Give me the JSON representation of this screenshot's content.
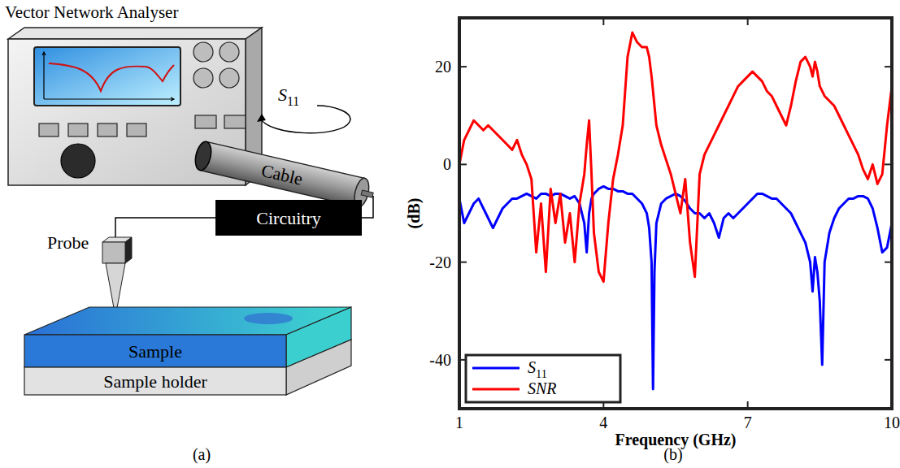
{
  "diagram": {
    "title": "Vector Network Analyser",
    "s_parameter": "S11",
    "nodes": [
      {
        "label": "Cable"
      },
      {
        "label": "Circuitry"
      },
      {
        "label": "Probe"
      },
      {
        "label": "Sample"
      },
      {
        "label": "Sample holder"
      }
    ],
    "caption": "(a)"
  },
  "chart_data": {
    "type": "line",
    "caption": "(b)",
    "x_label": "Frequency (GHz)",
    "y_label": "(dB)",
    "x": [
      1,
      1.1,
      1.2,
      1.3,
      1.4,
      1.5,
      1.6,
      1.7,
      1.8,
      1.9,
      2,
      2.1,
      2.2,
      2.3,
      2.4,
      2.5,
      2.6,
      2.7,
      2.8,
      2.9,
      3,
      3.1,
      3.2,
      3.3,
      3.4,
      3.5,
      3.6,
      3.65,
      3.7,
      3.75,
      3.8,
      3.9,
      4,
      4.1,
      4.2,
      4.3,
      4.4,
      4.5,
      4.6,
      4.7,
      4.8,
      4.9,
      4.95,
      5,
      5.03,
      5.06,
      5.1,
      5.2,
      5.3,
      5.4,
      5.5,
      5.6,
      5.7,
      5.8,
      5.9,
      6,
      6.1,
      6.2,
      6.3,
      6.4,
      6.5,
      6.6,
      6.7,
      6.8,
      6.9,
      7,
      7.1,
      7.2,
      7.3,
      7.4,
      7.5,
      7.6,
      7.7,
      7.8,
      7.9,
      8,
      8.1,
      8.2,
      8.3,
      8.35,
      8.4,
      8.45,
      8.5,
      8.55,
      8.6,
      8.7,
      8.8,
      8.9,
      9,
      9.1,
      9.2,
      9.3,
      9.4,
      9.5,
      9.6,
      9.7,
      9.8,
      9.9,
      10
    ],
    "series": [
      {
        "name": "S11",
        "color": "#0000ff",
        "values": [
          -7,
          -12,
          -10,
          -8,
          -7,
          -9,
          -11,
          -13,
          -11,
          -9,
          -8,
          -7,
          -7,
          -6.5,
          -6,
          -6.5,
          -7,
          -6,
          -6,
          -6.5,
          -6,
          -6,
          -6.5,
          -7,
          -6.5,
          -8,
          -12,
          -18,
          -10,
          -7,
          -6,
          -5,
          -4.5,
          -5,
          -5,
          -5.5,
          -5.5,
          -6,
          -6,
          -7,
          -8,
          -10,
          -13,
          -20,
          -46,
          -22,
          -12,
          -8,
          -7,
          -6.5,
          -6,
          -6.5,
          -7.5,
          -9,
          -10,
          -10,
          -11,
          -10,
          -12,
          -15,
          -11,
          -10,
          -11,
          -10,
          -9,
          -8,
          -7,
          -6,
          -6,
          -6.5,
          -7,
          -7,
          -8,
          -9,
          -10,
          -12,
          -14,
          -16,
          -20,
          -26,
          -19,
          -22,
          -28,
          -41,
          -20,
          -14,
          -11,
          -9,
          -8,
          -7,
          -7,
          -6.5,
          -6.5,
          -7,
          -9,
          -13,
          -18,
          -17,
          -12
        ]
      },
      {
        "name": "SNR",
        "color": "#ff0000",
        "values": [
          0,
          5,
          7,
          9,
          8,
          7,
          8,
          7,
          6,
          5,
          4,
          3,
          5,
          2,
          0,
          -3,
          -18,
          -8,
          -22,
          -5,
          -12,
          -6,
          -16,
          -10,
          -20,
          -8,
          -2,
          4,
          9,
          -2,
          -14,
          -22,
          -24,
          -12,
          -3,
          2,
          8,
          22,
          27,
          25,
          24,
          24,
          22,
          18,
          15,
          12,
          8,
          4,
          1,
          -2,
          -6,
          -10,
          -3,
          -16,
          -23,
          -2,
          2,
          4,
          6,
          8,
          10,
          12,
          14,
          16,
          17,
          18,
          19,
          18,
          17,
          15,
          14,
          12,
          10,
          8,
          12,
          17,
          21,
          22,
          20,
          18,
          21,
          19,
          16,
          15,
          14,
          13,
          12,
          10,
          8,
          6,
          4,
          2,
          -1,
          -3,
          0,
          -4,
          -2,
          8,
          16
        ]
      }
    ],
    "xlim": [
      1,
      10
    ],
    "ylim": [
      -50,
      30
    ],
    "xticks": [
      1,
      4,
      7,
      10
    ],
    "yticks": [
      -40,
      -20,
      0,
      20
    ],
    "legend": "lower left",
    "grid": false
  }
}
